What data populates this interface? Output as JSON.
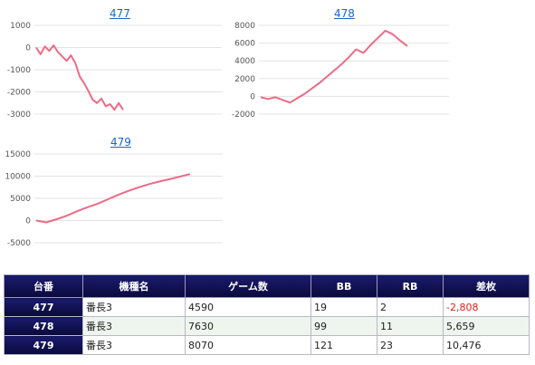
{
  "charts": [
    {
      "title": "477",
      "chart_data": {
        "type": "line",
        "title": "477",
        "color": "#ef6a85",
        "ylim": [
          -3000,
          1000
        ],
        "yticks": [
          1000,
          0,
          -1000,
          -2000,
          -3000
        ],
        "grid": true,
        "y": [
          0,
          -300,
          50,
          -150,
          100,
          -200,
          -400,
          -600,
          -350,
          -700,
          -1300,
          -1600,
          -1950,
          -2350,
          -2500,
          -2300,
          -2650,
          -2550,
          -2800,
          -2500,
          -2808
        ]
      }
    },
    {
      "title": "478",
      "chart_data": {
        "type": "line",
        "title": "478",
        "color": "#ef6a85",
        "ylim": [
          -2000,
          8000
        ],
        "yticks": [
          8000,
          6000,
          4000,
          2000,
          0,
          -2000
        ],
        "grid": true,
        "y": [
          -100,
          -300,
          -100,
          -400,
          -700,
          -200,
          300,
          900,
          1500,
          2200,
          2900,
          3600,
          4400,
          5300,
          4900,
          5800,
          6600,
          7400,
          7000,
          6300,
          5659
        ]
      }
    },
    {
      "title": "479",
      "chart_data": {
        "type": "line",
        "title": "479",
        "color": "#ef6a85",
        "ylim": [
          -5000,
          15000
        ],
        "yticks": [
          15000,
          10000,
          5000,
          0,
          -5000
        ],
        "grid": true,
        "y": [
          0,
          -400,
          300,
          1100,
          2100,
          3000,
          3800,
          4800,
          5800,
          6700,
          7500,
          8200,
          8800,
          9300,
          9900,
          10476
        ]
      }
    }
  ],
  "table": {
    "headers": [
      "台番",
      "機種名",
      "ゲーム数",
      "BB",
      "RB",
      "差枚"
    ],
    "rows": [
      {
        "unit": "477",
        "machine": "番長3",
        "games": "4590",
        "bb": "19",
        "rb": "2",
        "diff": "-2,808",
        "negative": true
      },
      {
        "unit": "478",
        "machine": "番長3",
        "games": "7630",
        "bb": "99",
        "rb": "11",
        "diff": "5,659",
        "negative": false
      },
      {
        "unit": "479",
        "machine": "番長3",
        "games": "8070",
        "bb": "121",
        "rb": "23",
        "diff": "10,476",
        "negative": false
      }
    ]
  }
}
